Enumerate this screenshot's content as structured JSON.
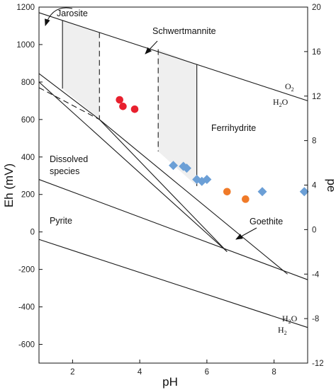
{
  "chart_data": {
    "type": "scatter",
    "xlabel": "pH",
    "ylabel_left": "Eh (mV)",
    "ylabel_right": "pe",
    "xlim": [
      1,
      9
    ],
    "ylim": [
      -700,
      1200
    ],
    "pe_lim": [
      -12,
      20
    ],
    "x_ticks": [
      2,
      4,
      6,
      8
    ],
    "y_ticks": [
      -600,
      -400,
      -200,
      0,
      200,
      400,
      600,
      800,
      1000,
      1200
    ],
    "pe_ticks": [
      -12,
      -8,
      -4,
      0,
      4,
      8,
      12,
      16,
      20
    ],
    "regions": {
      "jarosite": "Jarosite",
      "schwertmannite": "Schwertmannite",
      "ferrihydrite": "Ferrihydrite",
      "dissolved_1": "Dissolved",
      "dissolved_2": "species",
      "pyrite": "Pyrite",
      "goethite": "Goethite"
    },
    "water_upper_label": {
      "a": "O",
      "a_sub": "2",
      "b": "H",
      "b_sub": "2",
      "c": "O"
    },
    "water_lower_label": {
      "a": "H",
      "a_sub": "2",
      "b": "O",
      "c": "H",
      "c_sub": "2"
    },
    "colors": {
      "red": "#e8202e",
      "orange": "#f07a28",
      "blue": "#6b9fd6",
      "shade": "#efefef",
      "line": "#1a1a1a"
    },
    "lines": {
      "o2_h2o": [
        [
          1,
          1170
        ],
        [
          9,
          700
        ]
      ],
      "h2o_h2": [
        [
          1,
          -40
        ],
        [
          9,
          -510
        ]
      ],
      "dissolved_boundary": [
        [
          1,
          845
        ],
        [
          2.8,
          600
        ]
      ],
      "dissolved_pyrite_diag": [
        [
          1,
          800
        ],
        [
          6.6,
          -105
        ]
      ],
      "schw_lower": [
        [
          2.8,
          600
        ],
        [
          8.4,
          -225
        ]
      ],
      "pyrite_upper": [
        [
          1,
          280
        ],
        [
          9,
          -255
        ]
      ],
      "jar_left_vertical": [
        [
          1.7,
          1130
        ],
        [
          1.7,
          765
        ]
      ],
      "schw_right_vertical": [
        [
          5.7,
          895
        ],
        [
          5.7,
          245
        ]
      ],
      "goethite_bottom": [
        [
          2.8,
          600
        ],
        [
          6.6,
          -105
        ]
      ]
    },
    "dashed_lines": {
      "jar_right_vertical": [
        [
          2.8,
          1065
        ],
        [
          2.8,
          600
        ]
      ],
      "schw_left_vertical": [
        [
          4.55,
          975
        ],
        [
          4.55,
          430
        ]
      ],
      "jar_bottom": [
        [
          1,
          770
        ],
        [
          2.8,
          600
        ]
      ]
    },
    "shaded_regions": [
      [
        [
          1.7,
          1130
        ],
        [
          2.8,
          1065
        ],
        [
          2.8,
          600
        ],
        [
          1.7,
          765
        ]
      ],
      [
        [
          4.55,
          975
        ],
        [
          5.7,
          895
        ],
        [
          5.7,
          245
        ],
        [
          4.55,
          430
        ]
      ]
    ],
    "series": [
      {
        "marker": "circle",
        "color": "#e8202e",
        "points": [
          [
            3.4,
            705
          ],
          [
            3.5,
            670
          ],
          [
            3.85,
            655
          ]
        ]
      },
      {
        "marker": "circle",
        "color": "#f07a28",
        "points": [
          [
            6.6,
            215
          ],
          [
            7.15,
            175
          ]
        ]
      },
      {
        "marker": "diamond",
        "color": "#6b9fd6",
        "points": [
          [
            5.0,
            355
          ],
          [
            5.3,
            350
          ],
          [
            5.4,
            340
          ],
          [
            5.7,
            280
          ],
          [
            5.85,
            270
          ],
          [
            6.0,
            280
          ],
          [
            7.65,
            215
          ],
          [
            8.9,
            215
          ]
        ]
      }
    ]
  }
}
